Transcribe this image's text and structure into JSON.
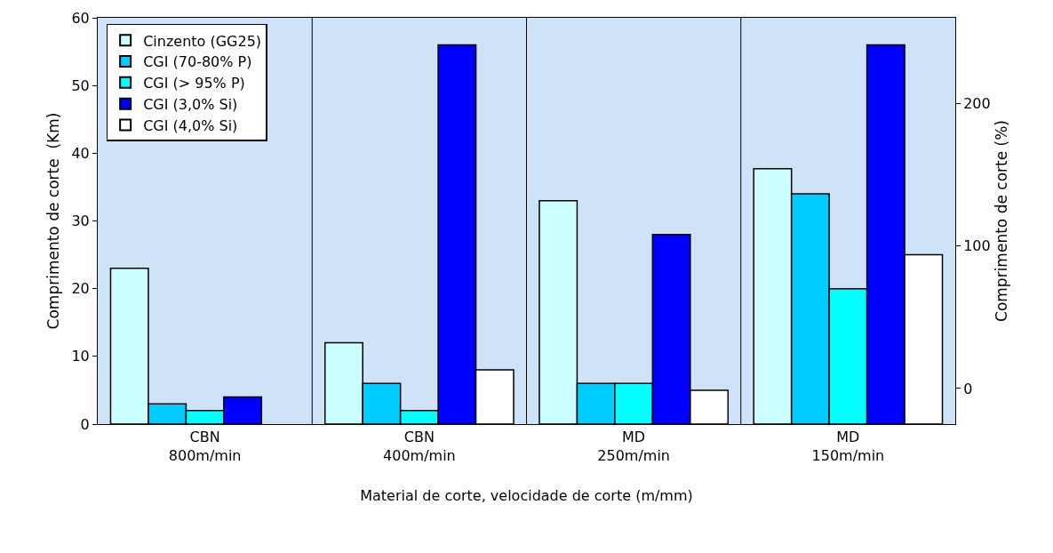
{
  "chart_data": {
    "type": "bar",
    "xlabel": "Material de corte, velocidade de corte (m/mm)",
    "ylabel": "Comprimento de corte  (Km)",
    "y2label": "Comprimento de corte (%)",
    "categories": [
      "CBN\n800m/min",
      "CBN\n400m/min",
      "MD\n250m/min",
      "MD\n150m/min"
    ],
    "series": [
      {
        "name": "Cinzento (GG25)",
        "color": "#ccffff",
        "values": [
          23,
          12,
          33,
          37.7
        ]
      },
      {
        "name": "CGI (70-80% P)",
        "color": "#00ccff",
        "values": [
          3,
          6,
          6,
          34
        ]
      },
      {
        "name": "CGI (> 95% P)",
        "color": "#00ffff",
        "values": [
          2,
          2,
          6,
          20
        ]
      },
      {
        "name": "CGI (3,0% Si)",
        "color": "#0000ff",
        "values": [
          4,
          56,
          28,
          56
        ]
      },
      {
        "name": "CGI (4,0% Si)",
        "color": "#ffffff",
        "values": [
          null,
          8,
          5,
          25
        ]
      }
    ],
    "ylim": [
      0,
      60
    ],
    "yticks": [
      0,
      10,
      20,
      30,
      40,
      50,
      60
    ],
    "y2lim": [
      -25,
      260
    ],
    "y2ticks": [
      0,
      100,
      200
    ],
    "grid": "x",
    "legend": "top left"
  }
}
